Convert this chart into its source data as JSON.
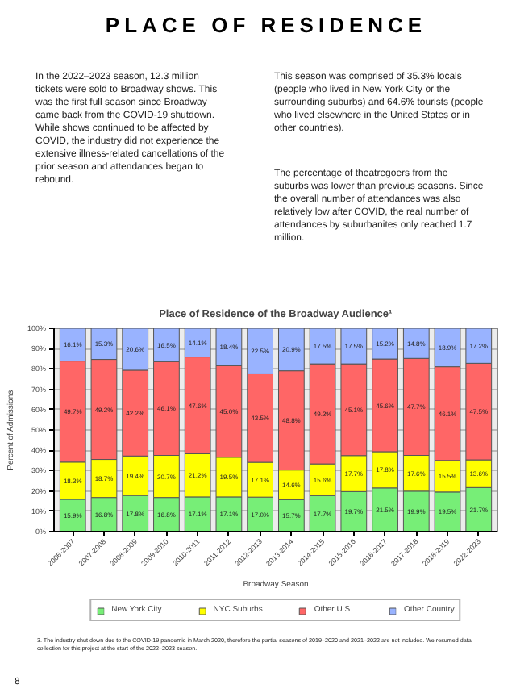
{
  "chart_data": {
    "type": "bar",
    "stacked": true,
    "title": "Place of Residence of the Broadway Audience¹",
    "xlabel": "Broadway Season",
    "ylabel": "Percent of Admissions",
    "categories": [
      "2006-2007",
      "2007-2008",
      "2008-2009",
      "2009-2010",
      "2010-2011",
      "2011-2012",
      "2012-2013",
      "2013-2014",
      "2014-2015",
      "2015-2016",
      "2016-2017",
      "2017-2018",
      "2018-2019",
      "2022-2023"
    ],
    "series": [
      {
        "name": "New York City",
        "color": "#77ee77",
        "values": [
          15.9,
          16.8,
          17.8,
          16.8,
          17.1,
          17.1,
          17.0,
          15.7,
          17.7,
          19.7,
          21.5,
          19.9,
          19.5,
          21.7
        ],
        "value_labels": [
          "15.9%",
          "16.8%",
          "17.8%",
          "16.8%",
          "17.1%",
          "17.1%",
          "17.0%",
          "15.7%",
          "17.7%",
          "19.7%",
          "21.5%",
          "19.9%",
          "19.5%",
          "21.7%"
        ]
      },
      {
        "name": "NYC Suburbs",
        "color": "#ffff00",
        "values": [
          18.3,
          18.7,
          19.4,
          20.7,
          21.2,
          19.5,
          17.1,
          14.6,
          15.6,
          17.7,
          17.8,
          17.6,
          15.5,
          13.6
        ],
        "value_labels": [
          "18.3%",
          "18.7%",
          "19.4%",
          "20.7%",
          "21.2%",
          "19.5%",
          "17.1%",
          "14.6%",
          "15.6%",
          "17.7%",
          "17.8%",
          "17.6%",
          "15.5%",
          "13.6%"
        ]
      },
      {
        "name": "Other U.S.",
        "color": "#ff6666",
        "values": [
          49.7,
          49.2,
          42.2,
          46.1,
          47.6,
          45.0,
          43.5,
          48.8,
          49.2,
          45.1,
          45.6,
          47.7,
          46.1,
          47.5
        ],
        "value_labels": [
          "49.7%",
          "49.2%",
          "42.2%",
          "46.1%",
          "47.6%",
          "45.0%",
          "43.5%",
          "48.8%",
          "49.2%",
          "45.1%",
          "45.6%",
          "47.7%",
          "46.1%",
          "47.5%"
        ]
      },
      {
        "name": "Other Country",
        "color": "#99b3ff",
        "values": [
          16.1,
          15.3,
          20.6,
          16.5,
          14.1,
          18.4,
          22.5,
          20.9,
          17.5,
          17.5,
          15.2,
          14.8,
          18.9,
          17.2
        ],
        "value_labels": [
          "16.1%",
          "15.3%",
          "20.6%",
          "16.5%",
          "14.1%",
          "18.4%",
          "22.5%",
          "20.9%",
          "17.5%",
          "17.5%",
          "15.2%",
          "14.8%",
          "18.9%",
          "17.2%"
        ]
      }
    ],
    "ylim": [
      0,
      100
    ],
    "yticks": [
      {
        "value": 0,
        "label": "0%"
      },
      {
        "value": 10,
        "label": "10%"
      },
      {
        "value": 20,
        "label": "20%"
      },
      {
        "value": 30,
        "label": "30%"
      },
      {
        "value": 40,
        "label": "40%"
      },
      {
        "value": 50,
        "label": "50%"
      },
      {
        "value": 60,
        "label": "60%"
      },
      {
        "value": 70,
        "label": "70%"
      },
      {
        "value": 80,
        "label": "80%"
      },
      {
        "value": 90,
        "label": "90%"
      },
      {
        "value": 100,
        "label": "100%"
      }
    ],
    "grid": "y",
    "legend": "bottom",
    "annotations": [
      "PLACE OF RESIDENCE",
      "In the 2022–2023 season, 12.3 million tickets were sold to Broadway shows.  This was the first full season since Broadway came back from the COVID-19 shutdown.  While shows continued to be affected by COVID, the industry did not experience the extensive illness-related cancellations of the prior season and attendances began to rebound.",
      "This season was comprised of 35.3% locals (people who lived in New York City or the surrounding suburbs) and 64.6% tourists (people who lived elsewhere in the United States or in other countries).",
      "The percentage of theatregoers from the suburbs was lower than previous seasons.  Since the overall number of attendances was also relatively low after COVID, the real number of attendances by suburbanites only reached 1.7 million.",
      "3.   The industry shut down due to the COVID-19 pandemic in March 2020, therefore the partial seasons of 2019–2020 and 2021–2022 are not included.  We resumed data collection for this project at the start of the 2022–2023 season.",
      "8"
    ]
  }
}
